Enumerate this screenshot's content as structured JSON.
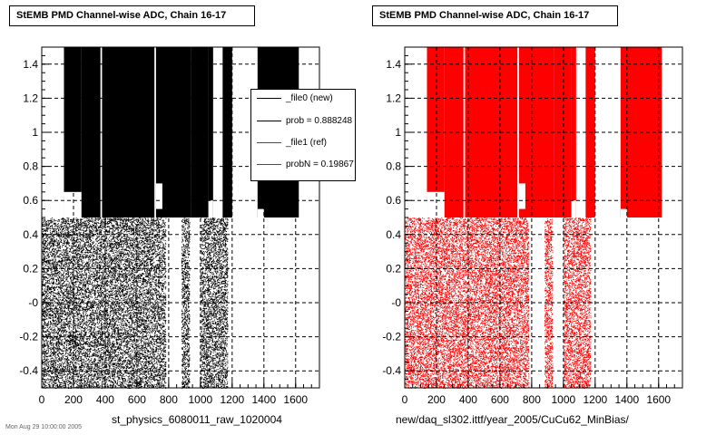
{
  "panels": [
    {
      "title": "StEMB PMD Channel-wise ADC, Chain 16-17",
      "bottom_label": "st_physics_6080011_raw_1020004",
      "marker_color": "#000000"
    },
    {
      "title": "StEMB PMD Channel-wise ADC, Chain 16-17",
      "bottom_label": "new/daq_sl302.ittf/year_2005/CuCu62_MinBias/",
      "marker_color": "#ff0000"
    }
  ],
  "legend": {
    "entries": [
      {
        "label": "_file0 (new)",
        "color": "#000000"
      },
      {
        "label": "prob = 0.888248",
        "color": "#000000"
      },
      {
        "label": "_file1 (ref)",
        "color": "#ff0000"
      },
      {
        "label": "probN = 0.19867",
        "color": "#ff0000"
      }
    ]
  },
  "footer_text": "Mon Aug 29 10:00:00 2005",
  "chart_data": [
    {
      "type": "scatter",
      "title": "StEMB PMD Channel-wise ADC, Chain 16-17",
      "xlabel": "st_physics_6080011_raw_1020004",
      "ylabel": "",
      "xlim": [
        0,
        1750
      ],
      "ylim": [
        -0.5,
        1.5
      ],
      "grid": true,
      "color": "#000000",
      "x_ticks": [
        0,
        200,
        400,
        600,
        800,
        1000,
        1200,
        1400,
        1600
      ],
      "x_tick_labels": [
        "0",
        "200",
        "400",
        "600",
        "800",
        "1000",
        "1200",
        "1400",
        "1600"
      ],
      "y_ticks": [
        -0.4,
        -0.2,
        0,
        0.2,
        0.4,
        0.6,
        0.8,
        1,
        1.2,
        1.4
      ],
      "y_tick_labels": [
        "-0.4",
        "-0.2",
        "-0",
        "0.2",
        "0.4",
        "0.6",
        "0.8",
        "1",
        "1.2",
        "1.4"
      ],
      "upper_band": {
        "y_range": [
          0.5,
          1.5
        ],
        "x_segments": [
          [
            140,
            250
          ],
          [
            250,
            370
          ],
          [
            380,
            710
          ],
          [
            720,
            940
          ],
          [
            940,
            1050
          ],
          [
            1050,
            1080
          ],
          [
            1140,
            1200
          ],
          [
            1360,
            1620
          ]
        ],
        "gap_segments": [
          [
            140,
            250,
            0.5,
            0.65
          ],
          [
            1050,
            1080,
            0.5,
            0.6
          ],
          [
            720,
            760,
            0.55,
            0.7
          ],
          [
            1360,
            1400,
            0.5,
            0.55
          ]
        ]
      },
      "lower_band": {
        "y_range": [
          -0.5,
          0.5
        ],
        "x_segments": [
          [
            0,
            780
          ],
          [
            880,
            930
          ],
          [
            1000,
            1170
          ]
        ]
      }
    },
    {
      "type": "scatter",
      "title": "StEMB PMD Channel-wise ADC, Chain 16-17",
      "xlabel": "new/daq_sl302.ittf/year_2005/CuCu62_MinBias/",
      "ylabel": "",
      "xlim": [
        0,
        1750
      ],
      "ylim": [
        -0.5,
        1.5
      ],
      "grid": true,
      "color": "#ff0000",
      "x_ticks": [
        0,
        200,
        400,
        600,
        800,
        1000,
        1200,
        1400,
        1600
      ],
      "x_tick_labels": [
        "0",
        "200",
        "400",
        "600",
        "800",
        "1000",
        "1200",
        "1400",
        "1600"
      ],
      "y_ticks": [
        -0.4,
        -0.2,
        0,
        0.2,
        0.4,
        0.6,
        0.8,
        1,
        1.2,
        1.4
      ],
      "y_tick_labels": [
        "-0.4",
        "-0.2",
        "-0",
        "0.2",
        "0.4",
        "0.6",
        "0.8",
        "1",
        "1.2",
        "1.4"
      ],
      "upper_band": {
        "y_range": [
          0.5,
          1.5
        ],
        "x_segments": [
          [
            140,
            250
          ],
          [
            250,
            370
          ],
          [
            380,
            710
          ],
          [
            720,
            940
          ],
          [
            940,
            1050
          ],
          [
            1050,
            1080
          ],
          [
            1140,
            1200
          ],
          [
            1360,
            1620
          ]
        ],
        "gap_segments": [
          [
            140,
            250,
            0.5,
            0.65
          ],
          [
            1050,
            1080,
            0.5,
            0.6
          ],
          [
            720,
            760,
            0.55,
            0.7
          ],
          [
            1360,
            1400,
            0.5,
            0.55
          ]
        ]
      },
      "lower_band": {
        "y_range": [
          -0.5,
          0.5
        ],
        "x_segments": [
          [
            0,
            780
          ],
          [
            880,
            930
          ],
          [
            1000,
            1170
          ]
        ]
      }
    }
  ]
}
